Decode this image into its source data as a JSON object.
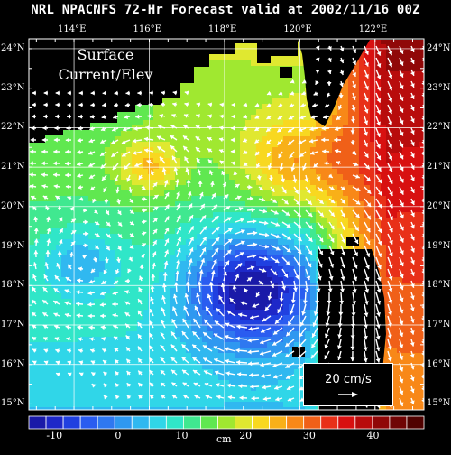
{
  "title": "NRL NPACNFS 72-Hr Forecast valid at 2002/11/16 00Z",
  "annotation_line1": "Surface",
  "annotation_line2": "Current/Elev",
  "reference_vector_label": "20 cm/s",
  "colorbar_units": "cm",
  "colorbar_ticks": [
    "-10",
    "0",
    "10",
    "20",
    "30",
    "40"
  ],
  "colorbar_tick_values": [
    -10,
    0,
    10,
    20,
    30,
    40
  ],
  "colorbar_range": [
    -14,
    48
  ],
  "lon_labels": [
    "114°E",
    "116°E",
    "118°E",
    "120°E",
    "122°E"
  ],
  "lon_values": [
    114,
    116,
    118,
    120,
    122
  ],
  "lat_labels": [
    "15°N",
    "16°N",
    "17°N",
    "18°N",
    "19°N",
    "20°N",
    "21°N",
    "22°N",
    "23°N",
    "24°N"
  ],
  "lat_values": [
    15,
    16,
    17,
    18,
    19,
    20,
    21,
    22,
    23,
    24
  ],
  "map_extent": {
    "lon": [
      112.8,
      123.3
    ],
    "lat": [
      14.85,
      24.25
    ]
  },
  "colors": {
    "land": "#000000",
    "colorbar": [
      "#1a1aa8",
      "#1e28c8",
      "#2040e0",
      "#2a5cf0",
      "#2f78f0",
      "#2f98f0",
      "#30b8f0",
      "#30d6e8",
      "#30e6c8",
      "#40e890",
      "#60e850",
      "#a0e830",
      "#e0e830",
      "#f8d820",
      "#f8b018",
      "#f88818",
      "#f06018",
      "#e83018",
      "#d81010",
      "#b80c0c",
      "#900808",
      "#700404",
      "#500200"
    ]
  }
}
